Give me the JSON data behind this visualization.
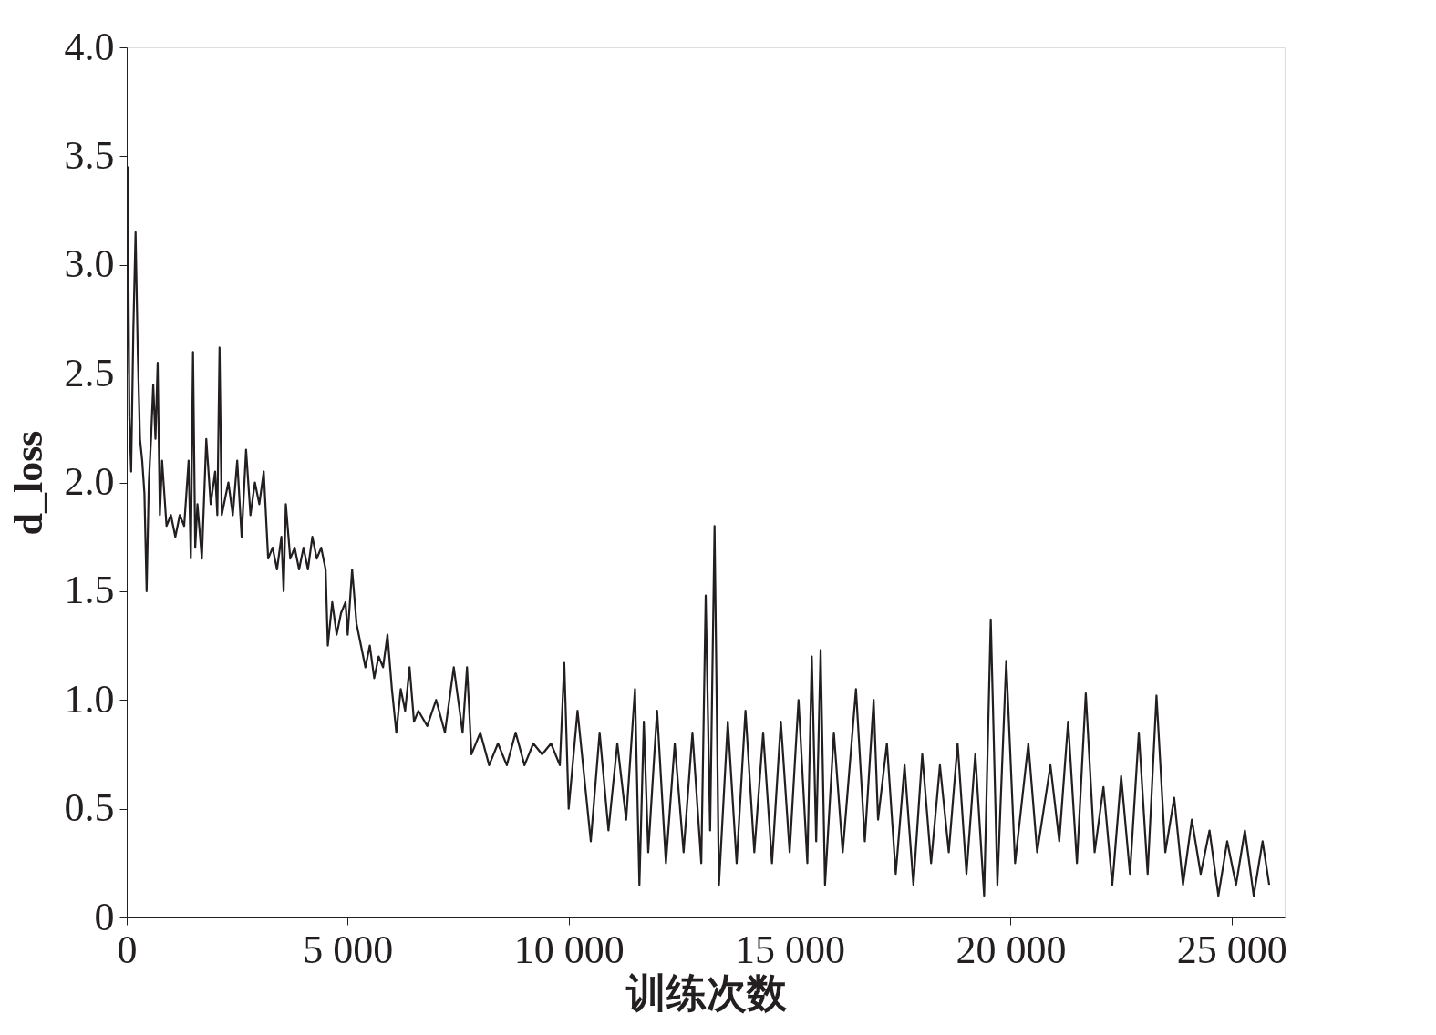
{
  "chart_data": {
    "type": "line",
    "xlabel": "训练次数",
    "ylabel": "d_loss",
    "x": [
      0,
      20,
      60,
      100,
      150,
      200,
      250,
      300,
      350,
      400,
      450,
      500,
      550,
      600,
      650,
      700,
      750,
      800,
      900,
      1000,
      1100,
      1200,
      1300,
      1400,
      1450,
      1500,
      1550,
      1600,
      1700,
      1800,
      1900,
      2000,
      2050,
      2100,
      2150,
      2300,
      2400,
      2500,
      2600,
      2700,
      2800,
      2900,
      3000,
      3100,
      3200,
      3300,
      3400,
      3500,
      3550,
      3600,
      3700,
      3800,
      3900,
      4000,
      4100,
      4200,
      4300,
      4400,
      4500,
      4550,
      4650,
      4750,
      4850,
      4950,
      5000,
      5100,
      5200,
      5300,
      5400,
      5500,
      5600,
      5700,
      5800,
      5900,
      6000,
      6100,
      6200,
      6300,
      6400,
      6500,
      6600,
      6800,
      7000,
      7200,
      7400,
      7600,
      7700,
      7800,
      8000,
      8200,
      8400,
      8600,
      8800,
      9000,
      9200,
      9400,
      9600,
      9800,
      9900,
      10000,
      10200,
      10400,
      10500,
      10700,
      10900,
      11100,
      11300,
      11500,
      11600,
      11700,
      11800,
      12000,
      12200,
      12400,
      12600,
      12800,
      13000,
      13100,
      13200,
      13300,
      13400,
      13600,
      13800,
      14000,
      14200,
      14400,
      14600,
      14800,
      15000,
      15200,
      15400,
      15500,
      15600,
      15700,
      15800,
      16000,
      16200,
      16500,
      16700,
      16900,
      17000,
      17200,
      17400,
      17600,
      17800,
      18000,
      18200,
      18400,
      18600,
      18800,
      19000,
      19200,
      19400,
      19550,
      19700,
      19900,
      20100,
      20400,
      20600,
      20900,
      21100,
      21300,
      21500,
      21700,
      21900,
      22100,
      22300,
      22500,
      22700,
      22900,
      23100,
      23300,
      23500,
      23700,
      23900,
      24100,
      24300,
      24500,
      24700,
      24900,
      25100,
      25300,
      25500,
      25700,
      25850
    ],
    "series": [
      {
        "color": "#231f20",
        "values": [
          2.5,
          3.45,
          2.3,
          2.05,
          2.7,
          3.15,
          2.6,
          2.2,
          2.1,
          1.95,
          1.5,
          2.0,
          2.2,
          2.45,
          2.2,
          2.55,
          1.85,
          2.1,
          1.8,
          1.85,
          1.75,
          1.85,
          1.8,
          2.1,
          1.65,
          2.6,
          1.7,
          1.9,
          1.65,
          2.2,
          1.9,
          2.05,
          1.85,
          2.62,
          1.85,
          2.0,
          1.85,
          2.1,
          1.75,
          2.15,
          1.85,
          2.0,
          1.9,
          2.05,
          1.65,
          1.7,
          1.6,
          1.75,
          1.5,
          1.9,
          1.65,
          1.7,
          1.6,
          1.7,
          1.6,
          1.75,
          1.65,
          1.7,
          1.6,
          1.25,
          1.45,
          1.3,
          1.4,
          1.45,
          1.3,
          1.6,
          1.35,
          1.25,
          1.15,
          1.25,
          1.1,
          1.2,
          1.15,
          1.3,
          1.05,
          0.85,
          1.05,
          0.95,
          1.15,
          0.9,
          0.95,
          0.88,
          1.0,
          0.85,
          1.15,
          0.85,
          1.15,
          0.75,
          0.85,
          0.7,
          0.8,
          0.7,
          0.85,
          0.7,
          0.8,
          0.75,
          0.8,
          0.7,
          1.17,
          0.5,
          0.95,
          0.55,
          0.35,
          0.85,
          0.4,
          0.8,
          0.45,
          1.05,
          0.15,
          0.9,
          0.3,
          0.95,
          0.25,
          0.8,
          0.3,
          0.85,
          0.25,
          1.48,
          0.4,
          1.8,
          0.15,
          0.9,
          0.25,
          0.95,
          0.3,
          0.85,
          0.25,
          0.9,
          0.3,
          1.0,
          0.25,
          1.2,
          0.35,
          1.23,
          0.15,
          0.85,
          0.3,
          1.05,
          0.35,
          1.0,
          0.45,
          0.8,
          0.2,
          0.7,
          0.15,
          0.75,
          0.25,
          0.7,
          0.3,
          0.8,
          0.2,
          0.75,
          0.1,
          1.37,
          0.15,
          1.18,
          0.25,
          0.8,
          0.3,
          0.7,
          0.35,
          0.9,
          0.25,
          1.03,
          0.3,
          0.6,
          0.15,
          0.65,
          0.2,
          0.85,
          0.2,
          1.02,
          0.3,
          0.55,
          0.15,
          0.45,
          0.2,
          0.4,
          0.1,
          0.35,
          0.15,
          0.4,
          0.1,
          0.35,
          0.15
        ]
      }
    ],
    "xlim": [
      0,
      26200
    ],
    "ylim": [
      0,
      4
    ],
    "xticks": [
      0,
      {
        "value": 5000,
        "label": "5 000"
      },
      {
        "value": 10000,
        "label": "10 000"
      },
      {
        "value": 15000,
        "label": "15 000"
      },
      {
        "value": 20000,
        "label": "20 000"
      },
      {
        "value": 25000,
        "label": "25 000"
      }
    ],
    "yticks": [
      0,
      {
        "value": 0.5,
        "label": "0.5"
      },
      {
        "value": 1,
        "label": "1.0"
      },
      {
        "value": 1.5,
        "label": "1.5"
      },
      {
        "value": 2,
        "label": "2.0"
      },
      {
        "value": 2.5,
        "label": "2.5"
      },
      {
        "value": 3,
        "label": "3.0"
      },
      {
        "value": 3.5,
        "label": "3.5"
      },
      {
        "value": 4,
        "label": "4.0"
      }
    ]
  }
}
